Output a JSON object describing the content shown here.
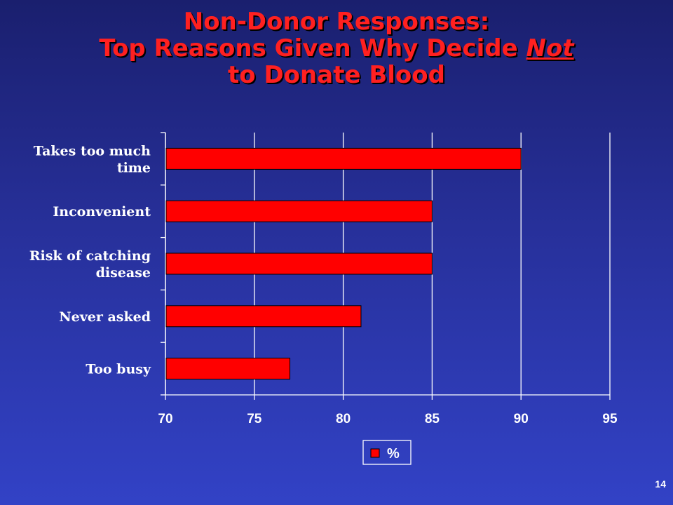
{
  "slide": {
    "title_line1": "Non-Donor Responses:",
    "title_line2_prefix": "Top Reasons Given Why Decide ",
    "title_line2_emph": "Not",
    "title_line3": "to Donate Blood",
    "page_number": "14"
  },
  "colors": {
    "bar": "#ff0000",
    "grid": "#ffffff",
    "title": "#ff2020"
  },
  "chart_data": {
    "type": "bar",
    "orientation": "horizontal",
    "categories": [
      [
        "Takes too much",
        "time"
      ],
      [
        "Inconvenient"
      ],
      [
        "Risk of catching",
        "disease"
      ],
      [
        "Never asked"
      ],
      [
        "Too busy"
      ]
    ],
    "series": [
      {
        "name": "%",
        "values": [
          90,
          85,
          85,
          81,
          77
        ]
      }
    ],
    "xlim": [
      70,
      95
    ],
    "xticks": [
      70,
      75,
      80,
      85,
      90,
      95
    ],
    "grid": true,
    "legend": "bottom"
  }
}
